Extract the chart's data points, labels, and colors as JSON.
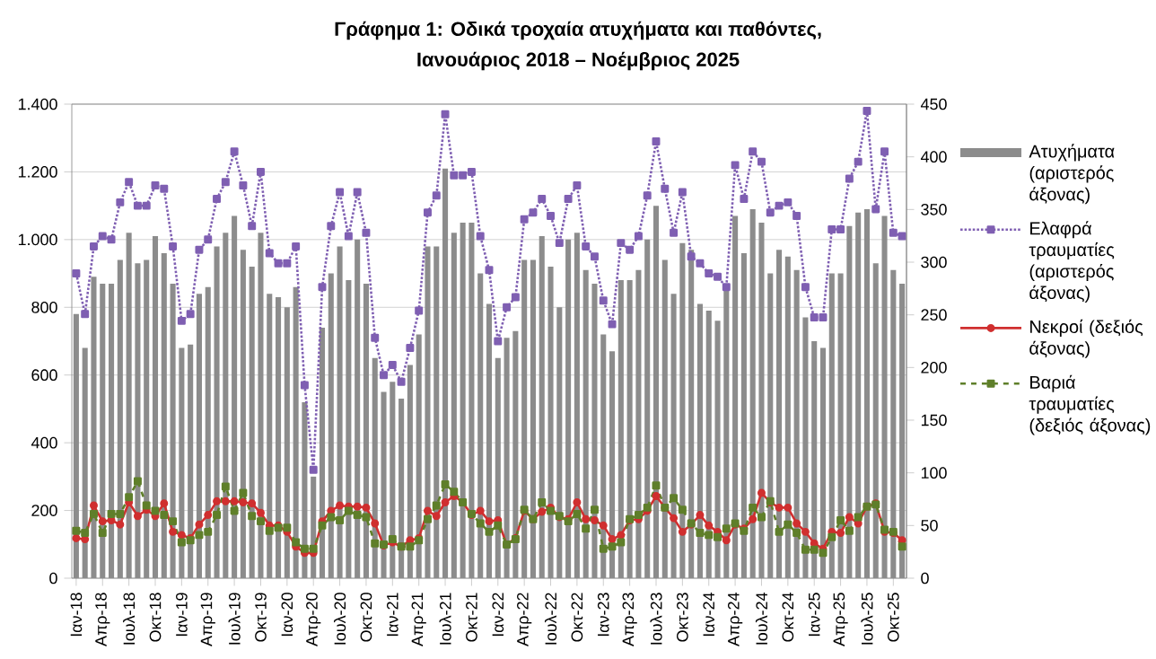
{
  "chart_data": {
    "type": "bar",
    "title": "Γράφημα 1: Οδικά τροχαία ατυχήματα και παθόντες,",
    "subtitle": "Ιανουάριος 2018 – Νοέμβριος 2025",
    "categories": [
      "Ιαν-18",
      null,
      null,
      "Απρ-18",
      null,
      null,
      "Ιουλ-18",
      null,
      null,
      "Οκτ-18",
      null,
      null,
      "Ιαν-19",
      null,
      null,
      "Απρ-19",
      null,
      null,
      "Ιουλ-19",
      null,
      null,
      "Οκτ-19",
      null,
      null,
      "Ιαν-20",
      null,
      null,
      "Απρ-20",
      null,
      null,
      "Ιουλ-20",
      null,
      null,
      "Οκτ-20",
      null,
      null,
      "Ιαν-21",
      null,
      null,
      "Απρ-21",
      null,
      null,
      "Ιουλ-21",
      null,
      null,
      "Οκτ-21",
      null,
      null,
      "Ιαν-22",
      null,
      null,
      "Απρ-22",
      null,
      null,
      "Ιουλ-22",
      null,
      null,
      "Οκτ-22",
      null,
      null,
      "Ιαν-23",
      null,
      null,
      "Απρ-23",
      null,
      null,
      "Ιουλ-23",
      null,
      null,
      "Οκτ-23",
      null,
      null,
      "Ιαν-24",
      null,
      null,
      "Απρ-24",
      null,
      null,
      "Ιουλ-24",
      null,
      null,
      "Οκτ-24",
      null,
      null,
      "Ιαν-25",
      null,
      null,
      "Απρ-25",
      null,
      null,
      "Ιουλ-25",
      null,
      null,
      "Οκτ-25",
      null
    ],
    "series": [
      {
        "name": "Ατυχήματα (αριστερός άξονας)",
        "color": "#8c8c8c",
        "values": [
          780,
          680,
          890,
          870,
          870,
          940,
          1020,
          930,
          940,
          1010,
          960,
          870,
          680,
          690,
          840,
          860,
          980,
          1020,
          1070,
          970,
          920,
          1020,
          840,
          830,
          800,
          860,
          520,
          300,
          740,
          900,
          980,
          880,
          1000,
          870,
          650,
          550,
          580,
          530,
          630,
          720,
          980,
          980,
          1210,
          1020,
          1050,
          1050,
          900,
          810,
          650,
          710,
          730,
          940,
          940,
          1010,
          920,
          800,
          1000,
          1020,
          910,
          870,
          720,
          670,
          880,
          880,
          910,
          1000,
          1100,
          940,
          840,
          990,
          970,
          810,
          790,
          760,
          850,
          1070,
          960,
          1090,
          1050,
          900,
          970,
          950,
          910,
          770,
          700,
          680,
          900,
          900,
          1040,
          1080,
          1090,
          930,
          1070,
          910,
          870
        ]
      },
      {
        "name": "Ελαφρά τραυματίες (αριστερός άξονας)",
        "type": "line",
        "color": "#7f5fb2",
        "marker": "square",
        "line_style": "dotted",
        "values": [
          900,
          780,
          980,
          1010,
          1000,
          1110,
          1170,
          1100,
          1100,
          1160,
          1150,
          980,
          760,
          780,
          970,
          1000,
          1120,
          1170,
          1260,
          1160,
          1040,
          1200,
          960,
          930,
          930,
          980,
          570,
          320,
          860,
          1040,
          1140,
          1010,
          1140,
          1020,
          710,
          600,
          630,
          580,
          680,
          790,
          1080,
          1130,
          1370,
          1190,
          1190,
          1200,
          1010,
          910,
          700,
          800,
          830,
          1060,
          1080,
          1120,
          1070,
          990,
          1120,
          1160,
          980,
          950,
          820,
          750,
          990,
          970,
          1010,
          1130,
          1290,
          1150,
          1020,
          1140,
          950,
          930,
          900,
          890,
          860,
          1220,
          1120,
          1260,
          1230,
          1080,
          1100,
          1110,
          1070,
          860,
          770,
          770,
          1030,
          1030,
          1180,
          1230,
          1380,
          1090,
          1260,
          1020,
          1010
        ]
      },
      {
        "name": "Νεκροί (δεξιός άξονας)",
        "type": "line",
        "axis": "y2",
        "color": "#d02f2f",
        "marker": "circle",
        "line_style": "solid",
        "values": [
          38,
          37,
          69,
          54,
          55,
          51,
          72,
          59,
          65,
          59,
          71,
          44,
          41,
          38,
          51,
          60,
          73,
          73,
          73,
          72,
          71,
          62,
          50,
          50,
          44,
          30,
          24,
          24,
          54,
          64,
          69,
          68,
          68,
          67,
          52,
          31,
          34,
          30,
          36,
          38,
          64,
          59,
          72,
          78,
          72,
          60,
          64,
          54,
          55,
          32,
          38,
          64,
          56,
          63,
          67,
          58,
          56,
          72,
          56,
          55,
          50,
          37,
          41,
          55,
          56,
          64,
          78,
          67,
          57,
          44,
          51,
          60,
          50,
          44,
          36,
          51,
          47,
          56,
          81,
          72,
          67,
          67,
          52,
          44,
          33,
          28,
          44,
          43,
          58,
          52,
          68,
          71,
          44,
          43,
          36
        ]
      },
      {
        "name": "Βαριά τραυματίες (δεξιός άξονας)",
        "type": "line",
        "axis": "y2",
        "color": "#5f7f2a",
        "marker": "square",
        "line_style": "dashed",
        "values": [
          45,
          43,
          61,
          43,
          61,
          61,
          77,
          92,
          69,
          64,
          60,
          54,
          34,
          36,
          41,
          44,
          60,
          87,
          64,
          81,
          59,
          54,
          45,
          48,
          48,
          34,
          28,
          28,
          50,
          58,
          55,
          64,
          60,
          58,
          33,
          32,
          37,
          30,
          30,
          36,
          56,
          69,
          89,
          82,
          72,
          61,
          52,
          44,
          50,
          32,
          37,
          65,
          56,
          72,
          64,
          59,
          54,
          61,
          47,
          65,
          28,
          30,
          34,
          56,
          60,
          67,
          88,
          67,
          76,
          65,
          52,
          43,
          41,
          39,
          47,
          52,
          45,
          67,
          58,
          73,
          44,
          51,
          43,
          27,
          27,
          24,
          39,
          55,
          45,
          58,
          68,
          70,
          46,
          44,
          30
        ]
      }
    ],
    "ylim": [
      0,
      1400
    ],
    "yticks": [
      {
        "value": 0,
        "label": "0"
      },
      {
        "value": 200,
        "label": "200"
      },
      {
        "value": 400,
        "label": "400"
      },
      {
        "value": 600,
        "label": "600"
      },
      {
        "value": 800,
        "label": "800"
      },
      {
        "value": 1000,
        "label": "1.000"
      },
      {
        "value": 1200,
        "label": "1.200"
      },
      {
        "value": 1400,
        "label": "1.400"
      }
    ],
    "y2lim": [
      0,
      450
    ],
    "y2ticks": [
      0,
      50,
      100,
      150,
      200,
      250,
      300,
      350,
      400,
      450
    ],
    "grid": "y",
    "legend": "right"
  }
}
